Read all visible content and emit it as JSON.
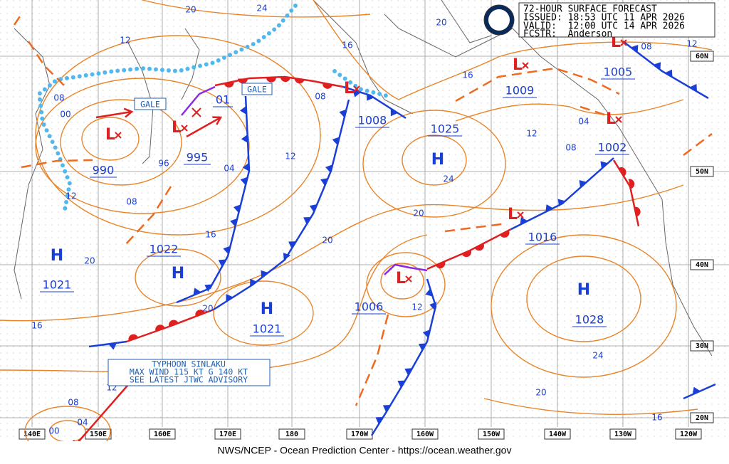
{
  "header": {
    "title": "72-HOUR SURFACE FORECAST",
    "issued": "ISSUED: 18:53 UTC 11 APR 2026",
    "valid": "VALID:  12:00 UTC 14 APR 2026",
    "forecaster": "FCSTR:  Anderson"
  },
  "footer": "NWS/NCEP - Ocean Prediction Center - https://ocean.weather.gov",
  "gale_labels": [
    "GALE",
    "GALE"
  ],
  "advisory": [
    "TYPHOON SINLAKU",
    "MAX WIND 115 KT G 140 KT",
    "SEE LATEST JTWC ADVISORY"
  ],
  "pressure_systems": [
    {
      "symbol": "L",
      "pressure": "990"
    },
    {
      "symbol": "L",
      "pressure": "995"
    },
    {
      "pressure": "01"
    },
    {
      "symbol": "L",
      "pressure": "1008"
    },
    {
      "symbol": "H",
      "pressure": "1025"
    },
    {
      "symbol": "L",
      "pressure": "1009"
    },
    {
      "symbol": "L",
      "pressure": "1005"
    },
    {
      "symbol": "L",
      "pressure": "1002"
    },
    {
      "symbol": "H",
      "pressure": "1022"
    },
    {
      "symbol": "H",
      "pressure": "1021"
    },
    {
      "symbol": "H",
      "pressure": "1021"
    },
    {
      "symbol": "L",
      "pressure": "1006"
    },
    {
      "symbol": "L",
      "pressure": "1016"
    },
    {
      "symbol": "H",
      "pressure": "1028"
    }
  ],
  "isobar_labels": [
    "20",
    "24",
    "12",
    "16",
    "20",
    "16",
    "08",
    "00",
    "08",
    "96",
    "04",
    "12",
    "08",
    "12",
    "16",
    "20",
    "20",
    "20",
    "24",
    "12",
    "08",
    "04",
    "08",
    "12",
    "16",
    "20",
    "12",
    "24",
    "20",
    "16",
    "12",
    "08",
    "04",
    "00"
  ],
  "latitude_labels": [
    "60N",
    "50N",
    "40N",
    "30N",
    "20N"
  ],
  "longitude_labels": [
    "140E",
    "150E",
    "160E",
    "170E",
    "180",
    "170W",
    "160W",
    "150W",
    "140W",
    "130W",
    "120W"
  ]
}
